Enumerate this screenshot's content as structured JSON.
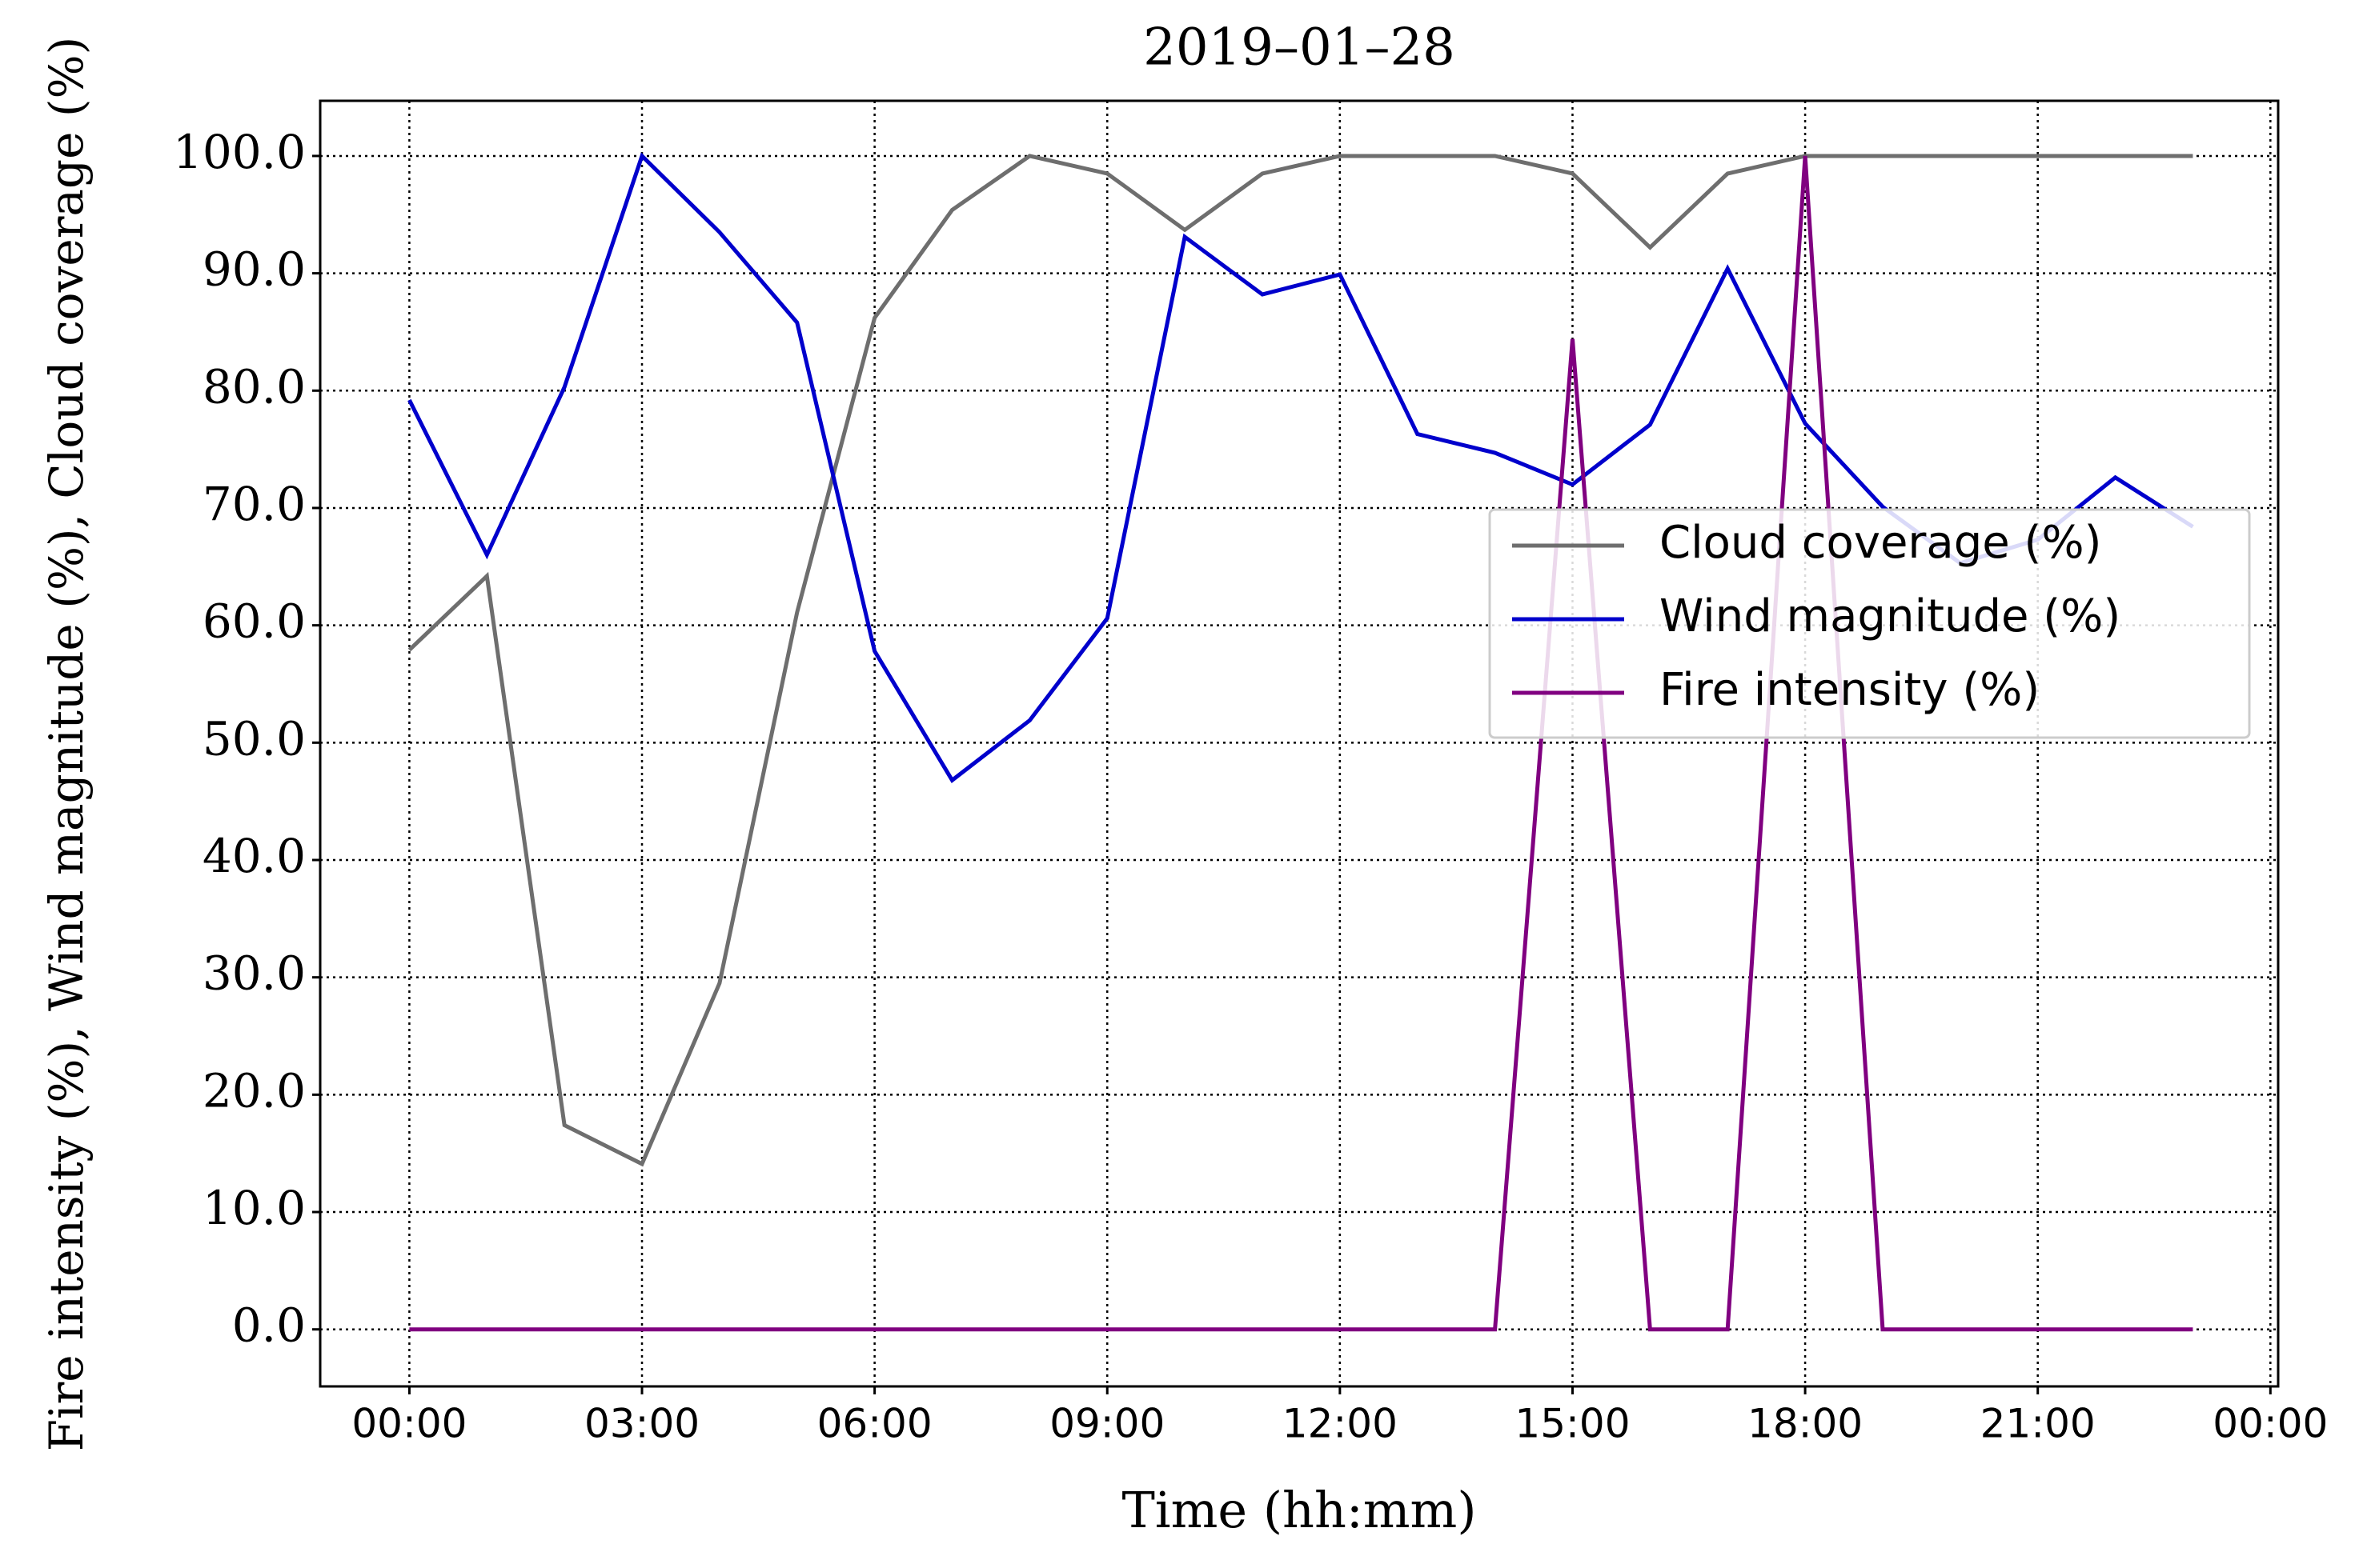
{
  "chart_data": {
    "type": "line",
    "title": "2019–01–28",
    "xlabel": "Time (hh:mm)",
    "ylabel": "Fire intensity (%), Wind magnitude (%), Cloud coverage (%)",
    "x": [
      0,
      1,
      2,
      3,
      4,
      5,
      6,
      7,
      8,
      9,
      10,
      11,
      12,
      13,
      14,
      15,
      16,
      17,
      18,
      19,
      20,
      21,
      22,
      23
    ],
    "series": [
      {
        "name": "Cloud coverage (%)",
        "color": "#6e6e6e",
        "values": [
          57.9,
          64.2,
          17.4,
          14.1,
          29.5,
          61.1,
          86.2,
          95.4,
          100,
          98.5,
          93.7,
          98.5,
          100,
          100,
          100,
          98.5,
          92.2,
          98.5,
          100,
          100,
          100,
          100,
          100,
          100
        ]
      },
      {
        "name": "Wind magnitude (%)",
        "color": "#0000cc",
        "values": [
          79.2,
          66,
          80.3,
          100,
          93.5,
          85.8,
          57.8,
          46.8,
          51.9,
          60.6,
          93.1,
          88.2,
          89.9,
          76.3,
          74.7,
          72,
          77.1,
          90.4,
          77.2,
          70.1,
          65.3,
          67.3,
          72.6,
          68.4
        ]
      },
      {
        "name": "Fire intensity (%)",
        "color": "#800080",
        "values": [
          0,
          0,
          0,
          0,
          0,
          0,
          0,
          0,
          0,
          0,
          0,
          0,
          0,
          0,
          0,
          84.4,
          0,
          0,
          100,
          0,
          0,
          0,
          0,
          0
        ]
      }
    ],
    "xlim": [
      -1.15,
      24.1
    ],
    "xticks": [
      {
        "value": 0,
        "label": "00:00"
      },
      {
        "value": 3,
        "label": "03:00"
      },
      {
        "value": 6,
        "label": "06:00"
      },
      {
        "value": 9,
        "label": "09:00"
      },
      {
        "value": 12,
        "label": "12:00"
      },
      {
        "value": 15,
        "label": "15:00"
      },
      {
        "value": 18,
        "label": "18:00"
      },
      {
        "value": 21,
        "label": "21:00"
      },
      {
        "value": 24,
        "label": "00:00"
      }
    ],
    "ylim": [
      -4.86,
      104.7
    ],
    "yticks": [
      {
        "value": 0,
        "label": "0.0"
      },
      {
        "value": 10,
        "label": "10.0"
      },
      {
        "value": 20,
        "label": "20.0"
      },
      {
        "value": 30,
        "label": "30.0"
      },
      {
        "value": 40,
        "label": "40.0"
      },
      {
        "value": 50,
        "label": "50.0"
      },
      {
        "value": 60,
        "label": "60.0"
      },
      {
        "value": 70,
        "label": "70.0"
      },
      {
        "value": 80,
        "label": "80.0"
      },
      {
        "value": 90,
        "label": "90.0"
      },
      {
        "value": 100,
        "label": "100.0"
      }
    ],
    "grid": true,
    "legend": "center right"
  }
}
